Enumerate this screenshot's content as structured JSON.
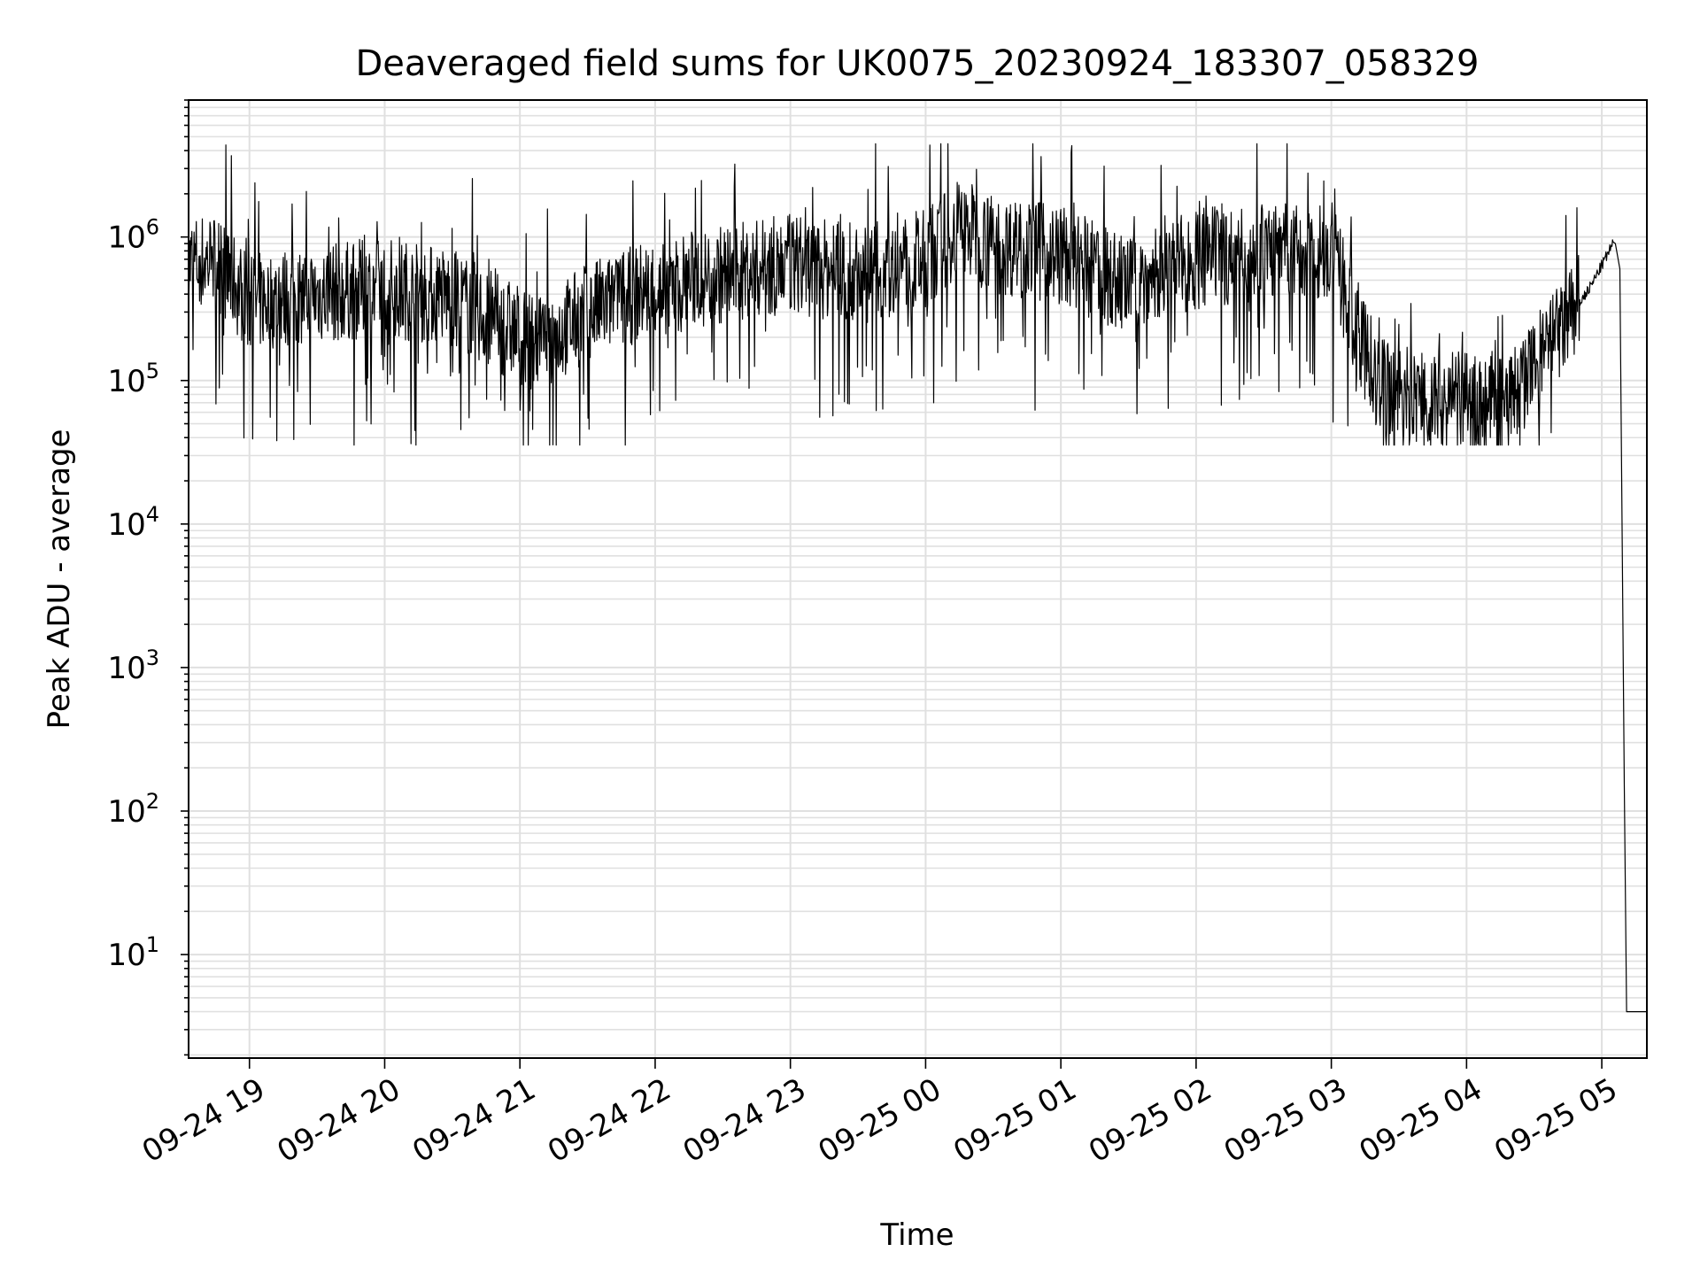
{
  "chart_data": {
    "type": "line",
    "title": "Deaveraged field sums for UK0075_20230924_183307_058329",
    "xlabel": "Time",
    "ylabel": "Peak ADU - average",
    "yscale": "log",
    "grid": true,
    "line_color": "#000000",
    "grid_color": "#e0e0e0",
    "xlim": [
      "2023-09-24 18:33",
      "2023-09-25 05:20"
    ],
    "ylim": [
      1.9,
      9000000
    ],
    "x_ticks": [
      {
        "label": "09-24 19",
        "time": "2023-09-24 19:00"
      },
      {
        "label": "09-24 20",
        "time": "2023-09-24 20:00"
      },
      {
        "label": "09-24 21",
        "time": "2023-09-24 21:00"
      },
      {
        "label": "09-24 22",
        "time": "2023-09-24 22:00"
      },
      {
        "label": "09-24 23",
        "time": "2023-09-24 23:00"
      },
      {
        "label": "09-25 00",
        "time": "2023-09-25 00:00"
      },
      {
        "label": "09-25 01",
        "time": "2023-09-25 01:00"
      },
      {
        "label": "09-25 02",
        "time": "2023-09-25 02:00"
      },
      {
        "label": "09-25 03",
        "time": "2023-09-25 03:00"
      },
      {
        "label": "09-25 04",
        "time": "2023-09-25 04:00"
      },
      {
        "label": "09-25 05",
        "time": "2023-09-25 05:00"
      }
    ],
    "y_ticks": [
      {
        "base": "10",
        "exp": "1",
        "value": 10
      },
      {
        "base": "10",
        "exp": "2",
        "value": 100
      },
      {
        "base": "10",
        "exp": "3",
        "value": 1000
      },
      {
        "base": "10",
        "exp": "4",
        "value": 10000
      },
      {
        "base": "10",
        "exp": "5",
        "value": 100000
      },
      {
        "base": "10",
        "exp": "6",
        "value": 1000000
      }
    ],
    "series": [
      {
        "envelope": {
          "x": [
            "2023-09-24 18:33",
            "2023-09-24 18:45",
            "2023-09-24 19:00",
            "2023-09-24 19:30",
            "2023-09-24 20:00",
            "2023-09-24 20:30",
            "2023-09-24 20:50",
            "2023-09-24 21:10",
            "2023-09-24 21:30",
            "2023-09-24 22:00",
            "2023-09-24 22:30",
            "2023-09-24 23:00",
            "2023-09-24 23:30",
            "2023-09-25 00:00",
            "2023-09-25 00:15",
            "2023-09-25 00:30",
            "2023-09-25 01:00",
            "2023-09-25 01:30",
            "2023-09-25 02:00",
            "2023-09-25 02:30",
            "2023-09-25 03:00",
            "2023-09-25 03:20",
            "2023-09-25 03:45",
            "2023-09-25 04:00",
            "2023-09-25 04:20",
            "2023-09-25 04:40",
            "2023-09-25 04:55",
            "2023-09-25 05:05"
          ],
          "median": [
            650000,
            700000,
            350000,
            400000,
            450000,
            380000,
            250000,
            180000,
            300000,
            450000,
            550000,
            650000,
            550000,
            700000,
            1200000,
            900000,
            750000,
            450000,
            700000,
            800000,
            800000,
            90000,
            75000,
            70000,
            75000,
            200000,
            450000,
            900000
          ]
        },
        "points": [
          {
            "x": "2023-09-25 05:06",
            "y": 900000
          },
          {
            "x": "2023-09-25 05:08",
            "y": 600000
          },
          {
            "x": "2023-09-25 05:10",
            "y": 150
          },
          {
            "x": "2023-09-25 05:11",
            "y": 4
          },
          {
            "x": "2023-09-25 05:20",
            "y": 4
          }
        ]
      }
    ]
  }
}
